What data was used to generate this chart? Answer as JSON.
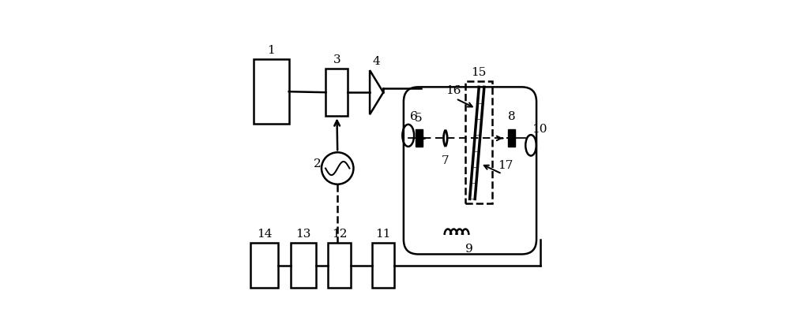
{
  "figsize": [
    10.0,
    3.92
  ],
  "dpi": 100,
  "bg_color": "white",
  "lw": 1.8
}
